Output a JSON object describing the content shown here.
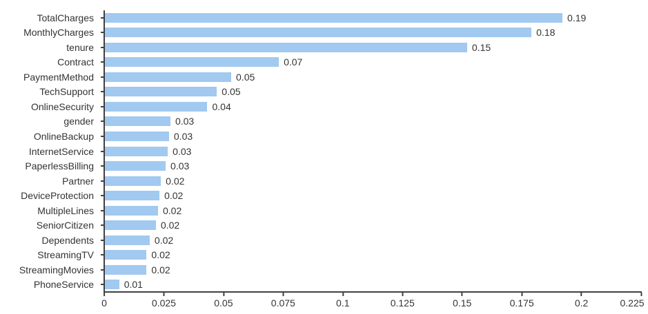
{
  "chart_data": {
    "type": "bar",
    "orientation": "horizontal",
    "title": "",
    "xlabel": "",
    "ylabel": "",
    "categories": [
      "TotalCharges",
      "MonthlyCharges",
      "tenure",
      "Contract",
      "PaymentMethod",
      "TechSupport",
      "OnlineSecurity",
      "gender",
      "OnlineBackup",
      "InternetService",
      "PaperlessBilling",
      "Partner",
      "DeviceProtection",
      "MultipleLines",
      "SeniorCitizen",
      "Dependents",
      "StreamingTV",
      "StreamingMovies",
      "PhoneService"
    ],
    "values": [
      0.192,
      0.179,
      0.152,
      0.073,
      0.053,
      0.047,
      0.043,
      0.0275,
      0.0269,
      0.0264,
      0.0255,
      0.0235,
      0.0229,
      0.0223,
      0.0214,
      0.0188,
      0.0175,
      0.0175,
      0.006
    ],
    "value_labels": [
      "0.19",
      "0.18",
      "0.15",
      "0.07",
      "0.05",
      "0.05",
      "0.04",
      "0.03",
      "0.03",
      "0.03",
      "0.03",
      "0.02",
      "0.02",
      "0.02",
      "0.02",
      "0.02",
      "0.02",
      "0.02",
      "0.01"
    ],
    "xlim": [
      0,
      0.225
    ],
    "x_tick_labels": [
      "0",
      "0.025",
      "0.05",
      "0.075",
      "0.1",
      "0.125",
      "0.15",
      "0.175",
      "0.2",
      "0.225"
    ],
    "grid": false,
    "legend_position": "none",
    "bar_color": "#A2C9F0",
    "axis_color": "#404040",
    "text_color": "#333333",
    "background_color": "#FFFFFF"
  }
}
